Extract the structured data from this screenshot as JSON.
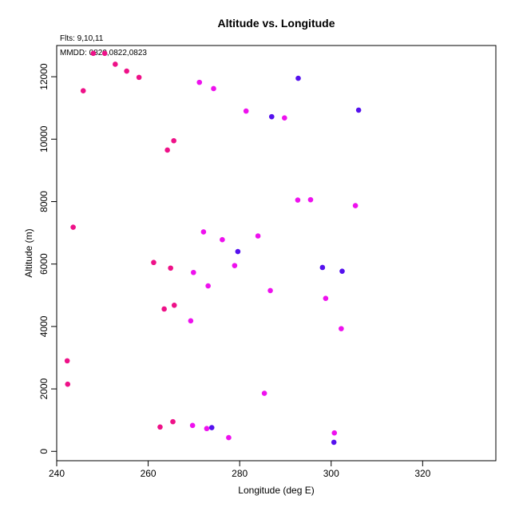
{
  "chart_data": {
    "type": "scatter",
    "title": "Altitude vs. Longitude",
    "subtitle": "Flts: 9,10,11",
    "annotation": "MMDD: 0820,0822,0823",
    "xlabel": "Longitude (deg E)",
    "ylabel": "Altitude (m)",
    "xlim": [
      240,
      336
    ],
    "ylim": [
      -300,
      13000
    ],
    "xticks": [
      240,
      260,
      280,
      300,
      320
    ],
    "yticks": [
      0,
      2000,
      4000,
      6000,
      8000,
      10000,
      12000
    ],
    "grid": false,
    "colors": {
      "deeppink": "#ee1188",
      "magenta": "#ee11ee",
      "violet": "#5511ee"
    },
    "points": [
      {
        "x": 248.0,
        "y": 12750,
        "c": "deeppink"
      },
      {
        "x": 250.5,
        "y": 12750,
        "c": "deeppink"
      },
      {
        "x": 252.8,
        "y": 12400,
        "c": "deeppink"
      },
      {
        "x": 255.3,
        "y": 12180,
        "c": "deeppink"
      },
      {
        "x": 258.0,
        "y": 11980,
        "c": "deeppink"
      },
      {
        "x": 245.8,
        "y": 11550,
        "c": "deeppink"
      },
      {
        "x": 265.6,
        "y": 9950,
        "c": "deeppink"
      },
      {
        "x": 264.2,
        "y": 9650,
        "c": "deeppink"
      },
      {
        "x": 243.6,
        "y": 7180,
        "c": "deeppink"
      },
      {
        "x": 261.2,
        "y": 6050,
        "c": "deeppink"
      },
      {
        "x": 264.9,
        "y": 5870,
        "c": "deeppink"
      },
      {
        "x": 265.7,
        "y": 4680,
        "c": "deeppink"
      },
      {
        "x": 263.5,
        "y": 4560,
        "c": "deeppink"
      },
      {
        "x": 242.3,
        "y": 2900,
        "c": "deeppink"
      },
      {
        "x": 242.4,
        "y": 2150,
        "c": "deeppink"
      },
      {
        "x": 265.4,
        "y": 950,
        "c": "deeppink"
      },
      {
        "x": 262.6,
        "y": 780,
        "c": "deeppink"
      },
      {
        "x": 271.2,
        "y": 11820,
        "c": "magenta"
      },
      {
        "x": 274.3,
        "y": 11620,
        "c": "magenta"
      },
      {
        "x": 281.4,
        "y": 10900,
        "c": "magenta"
      },
      {
        "x": 289.8,
        "y": 10680,
        "c": "magenta"
      },
      {
        "x": 292.7,
        "y": 8050,
        "c": "magenta"
      },
      {
        "x": 295.5,
        "y": 8060,
        "c": "magenta"
      },
      {
        "x": 305.3,
        "y": 7870,
        "c": "magenta"
      },
      {
        "x": 272.1,
        "y": 7030,
        "c": "magenta"
      },
      {
        "x": 284.0,
        "y": 6900,
        "c": "magenta"
      },
      {
        "x": 276.2,
        "y": 6780,
        "c": "magenta"
      },
      {
        "x": 278.9,
        "y": 5950,
        "c": "magenta"
      },
      {
        "x": 269.9,
        "y": 5730,
        "c": "magenta"
      },
      {
        "x": 273.1,
        "y": 5300,
        "c": "magenta"
      },
      {
        "x": 286.7,
        "y": 5150,
        "c": "magenta"
      },
      {
        "x": 298.8,
        "y": 4900,
        "c": "magenta"
      },
      {
        "x": 269.3,
        "y": 4180,
        "c": "magenta"
      },
      {
        "x": 302.2,
        "y": 3930,
        "c": "magenta"
      },
      {
        "x": 285.4,
        "y": 1860,
        "c": "magenta"
      },
      {
        "x": 269.7,
        "y": 830,
        "c": "magenta"
      },
      {
        "x": 272.8,
        "y": 730,
        "c": "magenta"
      },
      {
        "x": 277.6,
        "y": 440,
        "c": "magenta"
      },
      {
        "x": 300.7,
        "y": 590,
        "c": "magenta"
      },
      {
        "x": 292.8,
        "y": 11950,
        "c": "violet"
      },
      {
        "x": 287.0,
        "y": 10720,
        "c": "violet"
      },
      {
        "x": 306.0,
        "y": 10930,
        "c": "violet"
      },
      {
        "x": 279.6,
        "y": 6400,
        "c": "violet"
      },
      {
        "x": 298.1,
        "y": 5890,
        "c": "violet"
      },
      {
        "x": 302.4,
        "y": 5770,
        "c": "violet"
      },
      {
        "x": 273.9,
        "y": 760,
        "c": "violet"
      },
      {
        "x": 300.6,
        "y": 290,
        "c": "violet"
      }
    ]
  }
}
